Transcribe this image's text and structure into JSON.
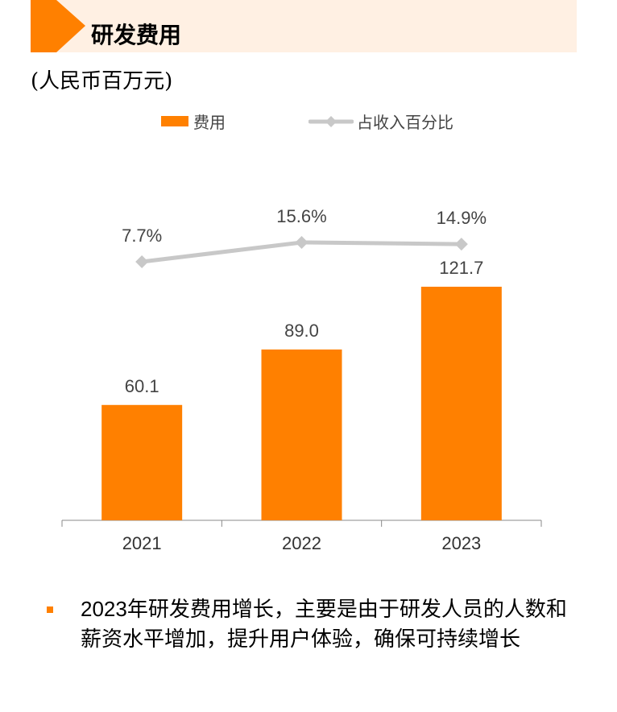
{
  "header": {
    "title": "研发费用",
    "unit": "(人民币百万元)"
  },
  "colors": {
    "accent": "#ff8000",
    "line": "#c8c8c8",
    "banner": "#fff0e3"
  },
  "legend": {
    "bar": "费用",
    "line": "占收入百分比"
  },
  "chart_data": {
    "type": "bar+line",
    "categories": [
      "2021",
      "2022",
      "2023"
    ],
    "series": [
      {
        "name": "费用",
        "type": "bar",
        "values": [
          60.1,
          89.0,
          121.7
        ],
        "labels": [
          "60.1",
          "89.0",
          "121.7"
        ]
      },
      {
        "name": "占收入百分比",
        "type": "line",
        "values": [
          7.7,
          15.6,
          14.9
        ],
        "labels": [
          "7.7%",
          "15.6%",
          "14.9%"
        ]
      }
    ],
    "legend_position": "top-center",
    "grid": false
  },
  "note": {
    "year": "2023",
    "text": "年研发费用增长，主要是由于研发人员的人数和薪资水平增加，提升用户体验，确保可持续增长"
  }
}
